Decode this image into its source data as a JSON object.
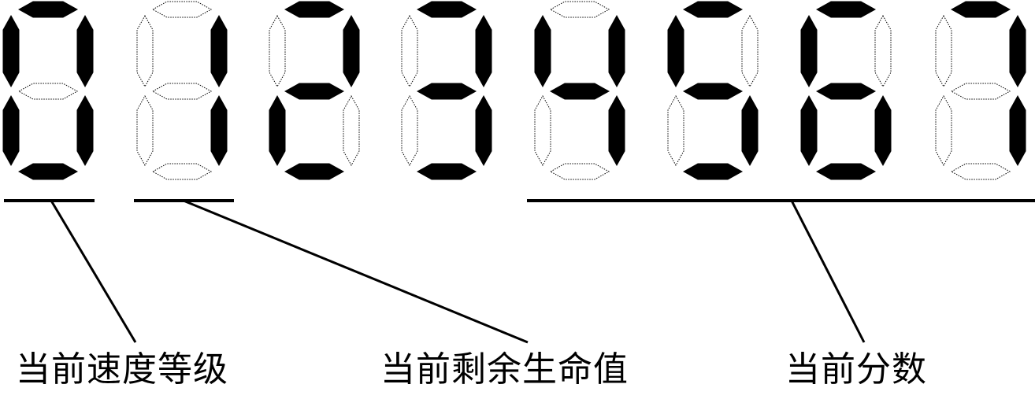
{
  "display": {
    "digits": [
      {
        "value": "0",
        "segments": {
          "a": true,
          "b": true,
          "c": true,
          "d": true,
          "e": true,
          "f": true,
          "g": false
        }
      },
      {
        "value": "1",
        "segments": {
          "a": false,
          "b": true,
          "c": true,
          "d": false,
          "e": false,
          "f": false,
          "g": false
        }
      },
      {
        "value": "2",
        "segments": {
          "a": true,
          "b": true,
          "c": false,
          "d": true,
          "e": true,
          "f": false,
          "g": true
        }
      },
      {
        "value": "3",
        "segments": {
          "a": true,
          "b": true,
          "c": true,
          "d": true,
          "e": false,
          "f": false,
          "g": true
        }
      },
      {
        "value": "4",
        "segments": {
          "a": false,
          "b": true,
          "c": true,
          "d": false,
          "e": false,
          "f": true,
          "g": true
        }
      },
      {
        "value": "5",
        "segments": {
          "a": true,
          "b": false,
          "c": true,
          "d": true,
          "e": false,
          "f": true,
          "g": true
        }
      },
      {
        "value": "6",
        "segments": {
          "a": true,
          "b": false,
          "c": true,
          "d": true,
          "e": true,
          "f": true,
          "g": true
        }
      },
      {
        "value": "7",
        "segments": {
          "a": true,
          "b": true,
          "c": true,
          "d": false,
          "e": false,
          "f": false,
          "g": false
        }
      }
    ],
    "on_color": "#000000",
    "off_stroke_color": "#000000"
  },
  "labels": {
    "speed_level": "当前速度等级",
    "remaining_lives": "当前剩余生命值",
    "current_score": "当前分数"
  }
}
